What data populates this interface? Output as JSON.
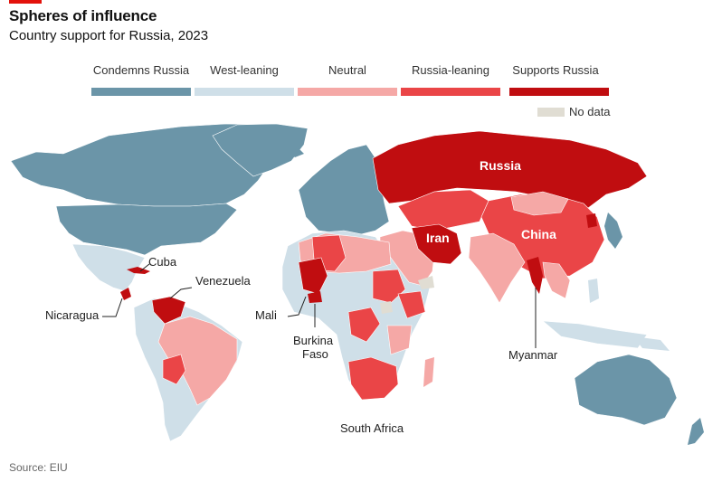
{
  "header": {
    "title": "Spheres of influence",
    "subtitle": "Country support for Russia, 2023"
  },
  "legend": {
    "items": [
      {
        "label": "Condemns Russia",
        "color": "#6b95a8"
      },
      {
        "label": "West-leaning",
        "color": "#cfdfe8"
      },
      {
        "label": "Neutral",
        "color": "#f5a8a6"
      },
      {
        "label": "Russia-leaning",
        "color": "#ea4547"
      },
      {
        "label": "Supports Russia",
        "color": "#c00d10"
      }
    ],
    "nodata": {
      "label": "No data",
      "color": "#e0ddd3"
    }
  },
  "map_labels": {
    "russia": "Russia",
    "china": "China",
    "iran": "Iran",
    "cuba": "Cuba",
    "venezuela": "Venezuela",
    "nicaragua": "Nicaragua",
    "mali": "Mali",
    "burkina_1": "Burkina",
    "burkina_2": "Faso",
    "myanmar": "Myanmar",
    "south_africa": "South Africa"
  },
  "source": "Source: EIU"
}
